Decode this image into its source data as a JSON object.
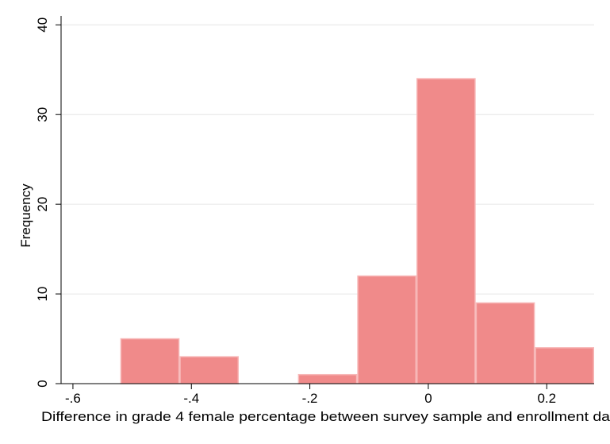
{
  "chart_data": {
    "type": "bar",
    "subtype": "histogram",
    "xlabel": "Difference in grade 4 female percentage between survey sample and enrollment da",
    "ylabel": "Frequency",
    "xlim": [
      -0.62,
      0.28
    ],
    "ylim": [
      0,
      41
    ],
    "x_ticks": [
      {
        "value": -0.6,
        "label": "-.6"
      },
      {
        "value": -0.4,
        "label": "-.4"
      },
      {
        "value": -0.2,
        "label": "-.2"
      },
      {
        "value": 0,
        "label": "0"
      },
      {
        "value": 0.2,
        "label": "0.2"
      }
    ],
    "y_ticks": [
      {
        "value": 0,
        "label": "0"
      },
      {
        "value": 10,
        "label": "10"
      },
      {
        "value": 20,
        "label": "20"
      },
      {
        "value": 30,
        "label": "30"
      },
      {
        "value": 40,
        "label": "40"
      }
    ],
    "grid": true,
    "bin_width": 0.1,
    "bins": [
      {
        "start": -0.52,
        "end": -0.42,
        "count": 5
      },
      {
        "start": -0.42,
        "end": -0.32,
        "count": 3
      },
      {
        "start": -0.32,
        "end": -0.22,
        "count": 0
      },
      {
        "start": -0.22,
        "end": -0.12,
        "count": 1
      },
      {
        "start": -0.12,
        "end": -0.02,
        "count": 12
      },
      {
        "start": -0.02,
        "end": 0.08,
        "count": 34
      },
      {
        "start": 0.08,
        "end": 0.18,
        "count": 9
      },
      {
        "start": 0.18,
        "end": 0.28,
        "count": 4
      }
    ],
    "colors": {
      "bar_fill": "#f08a8a",
      "bar_stroke": "#f7b7b7",
      "grid": "#e6e6e6",
      "axis": "#000000"
    }
  }
}
